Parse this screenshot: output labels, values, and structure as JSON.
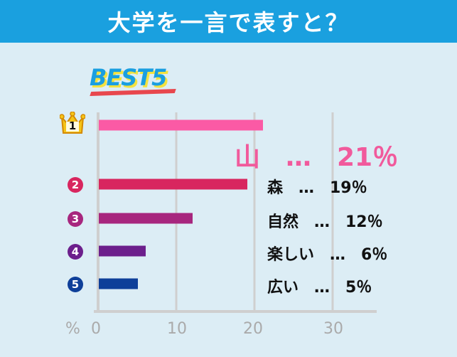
{
  "header": {
    "title": "大学を一言で表すと？"
  },
  "best_label": "BEST5",
  "colors": {
    "header_bg": "#1aa0df",
    "background": "#dcedf5",
    "bars": [
      "#fb5aa5",
      "#d8265f",
      "#a7267e",
      "#6c1f8c",
      "#0e3f99"
    ],
    "grid": "#cfcfcf"
  },
  "chart_data": {
    "type": "bar",
    "orientation": "horizontal",
    "categories": [
      "山",
      "森",
      "自然",
      "楽しい",
      "広い"
    ],
    "values": [
      21,
      19,
      12,
      6,
      5
    ],
    "value_labels": [
      "山　…　21％",
      "森　…　19％",
      "自然　…　12％",
      "楽しい　…　6％",
      "広い　…　5％"
    ],
    "ranks": [
      "1",
      "2",
      "3",
      "4",
      "5"
    ],
    "x_ticks": [
      "0",
      "10",
      "20",
      "30"
    ],
    "x_unit": "%",
    "xlim": [
      0,
      30
    ],
    "grid": true
  }
}
